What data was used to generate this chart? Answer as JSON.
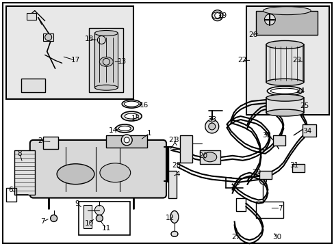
{
  "bg_color": "#ffffff",
  "line_color": "#000000",
  "text_color": "#000000",
  "fig_width": 4.89,
  "fig_height": 3.6,
  "dpi": 100,
  "font_size": 7.5,
  "inset_bg": "#e8e8e8",
  "part_gray": "#c8c8c8",
  "part_light": "#e0e0e0"
}
